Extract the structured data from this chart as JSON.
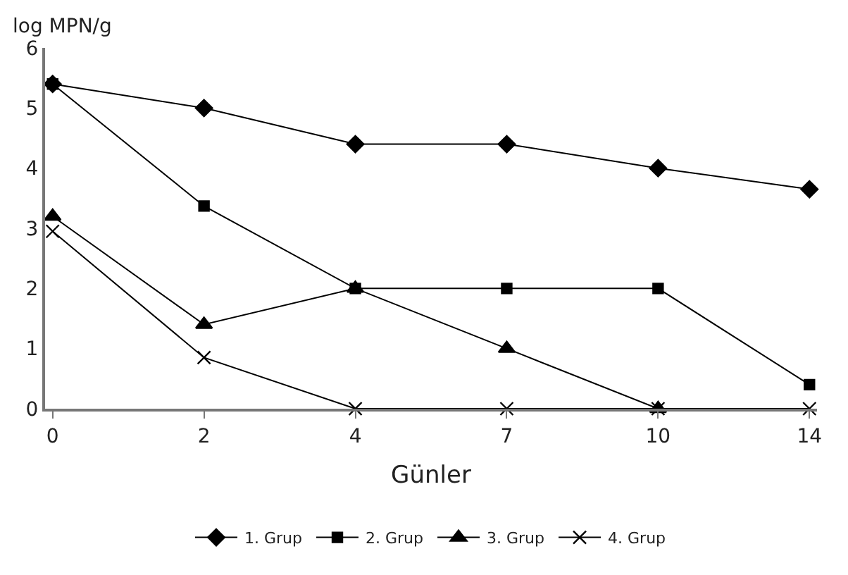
{
  "chart_data": {
    "type": "line",
    "ylabel": "log MPN/g",
    "xlabel": "Günler",
    "categories": [
      "0",
      "2",
      "4",
      "7",
      "10",
      "14"
    ],
    "series": [
      {
        "name": "1. Grup",
        "color": "#000000",
        "marker": "diamond",
        "values": [
          5.4,
          5.0,
          4.4,
          4.4,
          4.0,
          3.65
        ]
      },
      {
        "name": "2. Grup",
        "color": "#000000",
        "marker": "square",
        "values": [
          5.4,
          3.37,
          2.0,
          2.0,
          2.0,
          0.4
        ]
      },
      {
        "name": "3. Grup",
        "color": "#000000",
        "marker": "triangle",
        "values": [
          3.2,
          1.4,
          2.0,
          1.0,
          0,
          null
        ]
      },
      {
        "name": "4. Grup",
        "color": "#000000",
        "marker": "cross",
        "values": [
          2.95,
          0.85,
          0,
          0,
          0,
          0
        ]
      }
    ],
    "ylim": [
      0,
      6
    ],
    "yticks": [
      0,
      1,
      2,
      3,
      4,
      5,
      6
    ],
    "legend": "bottom",
    "line_style": "solid"
  }
}
